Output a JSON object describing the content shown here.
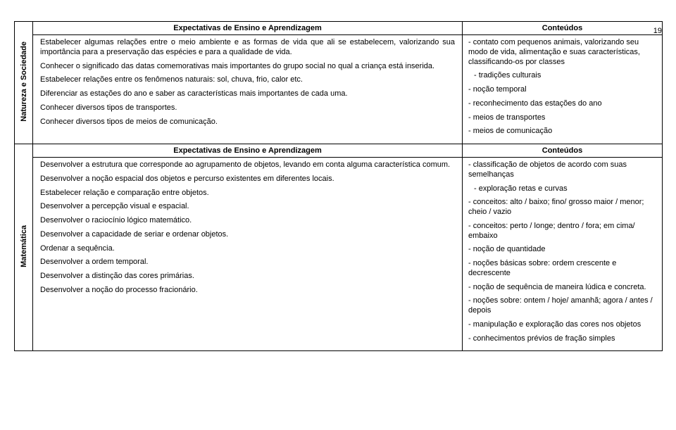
{
  "page_number": "19",
  "sections": [
    {
      "vlabel": "Natureza e Sociedade",
      "header_left": "Expectativas de Ensino e Aprendizagem",
      "header_right": "Conteúdos",
      "left_items": [
        "Estabelecer algumas relações entre o meio ambiente e as formas de vida que ali se estabelecem, valorizando sua importância para a preservação das espécies e para a qualidade de vida.",
        "Conhecer o significado das datas comemorativas mais importantes do grupo social no qual a criança está inserida.",
        "Estabelecer relações entre os fenômenos naturais: sol, chuva, frio, calor etc.",
        "Diferenciar as estações do ano e saber as características mais importantes de cada uma.",
        "Conhecer diversos tipos de transportes.",
        "Conhecer diversos tipos de meios de comunicação."
      ],
      "right_items": [
        "- contato com pequenos animais, valorizando seu modo de vida, alimentação e suas características, classificando-os por classes",
        "- tradições culturais",
        "- noção temporal",
        "- reconhecimento das estações do ano",
        "- meios de transportes",
        "- meios de comunicação"
      ]
    },
    {
      "vlabel": "Matemática",
      "header_left": "Expectativas de Ensino e Aprendizagem",
      "header_right": "Conteúdos",
      "left_items": [
        "Desenvolver a estrutura que corresponde ao agrupamento de objetos, levando em conta alguma característica comum.",
        "Desenvolver a noção espacial dos objetos e percurso existentes em diferentes locais.",
        "Estabelecer relação e comparação entre objetos.",
        "Desenvolver a percepção visual e espacial.",
        "Desenvolver o raciocínio lógico matemático.",
        "Desenvolver a capacidade de seriar e ordenar objetos.",
        "Ordenar a sequência.",
        "Desenvolver a ordem temporal.",
        "Desenvolver a distinção das cores primárias.",
        "Desenvolver a noção do processo fracionário."
      ],
      "right_items": [
        "- classificação de objetos de acordo com suas semelhanças",
        "- exploração retas e curvas",
        "- conceitos: alto / baixo; fino/ grosso maior / menor; cheio / vazio",
        "- conceitos: perto / longe; dentro / fora; em cima/ embaixo",
        "- noção de quantidade",
        "- noções básicas sobre: ordem crescente e decrescente",
        "- noção de sequência de maneira lúdica e concreta.",
        "- noções sobre: ontem / hoje/ amanhã; agora / antes / depois",
        "- manipulação e exploração das cores nos objetos",
        "- conhecimentos prévios de fração simples"
      ]
    }
  ]
}
